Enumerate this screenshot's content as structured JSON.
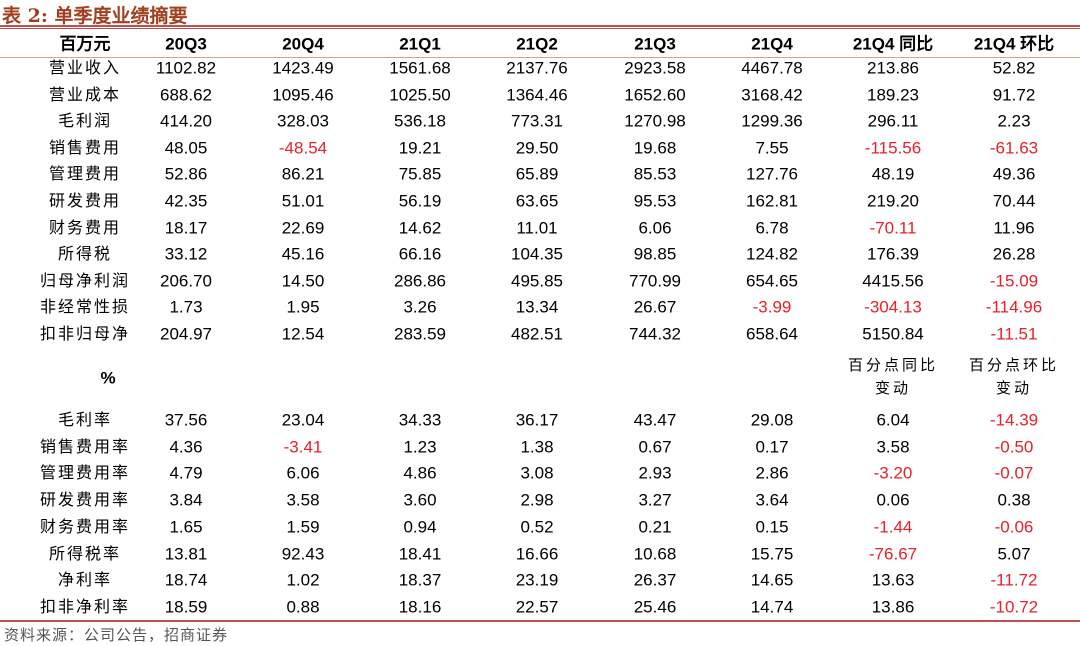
{
  "title": "表 2: 单季度业绩摘要",
  "header": [
    "百万元",
    "20Q3",
    "20Q4",
    "21Q1",
    "21Q2",
    "21Q3",
    "21Q4",
    "21Q4 同比",
    "21Q4 环比"
  ],
  "rows": [
    [
      "营业收入",
      "1102.82",
      "1423.49",
      "1561.68",
      "2137.76",
      "2923.58",
      "4467.78",
      "213.86",
      "52.82"
    ],
    [
      "营业成本",
      "688.62",
      "1095.46",
      "1025.50",
      "1364.46",
      "1652.60",
      "3168.42",
      "189.23",
      "91.72"
    ],
    [
      "毛利润",
      "414.20",
      "328.03",
      "536.18",
      "773.31",
      "1270.98",
      "1299.36",
      "296.11",
      "2.23"
    ],
    [
      "销售费用",
      "48.05",
      "-48.54",
      "19.21",
      "29.50",
      "19.68",
      "7.55",
      "-115.56",
      "-61.63"
    ],
    [
      "管理费用",
      "52.86",
      "86.21",
      "75.85",
      "65.89",
      "85.53",
      "127.76",
      "48.19",
      "49.36"
    ],
    [
      "研发费用",
      "42.35",
      "51.01",
      "56.19",
      "63.65",
      "95.53",
      "162.81",
      "219.20",
      "70.44"
    ],
    [
      "财务费用",
      "18.17",
      "22.69",
      "14.62",
      "11.01",
      "6.06",
      "6.78",
      "-70.11",
      "11.96"
    ],
    [
      "所得税",
      "33.12",
      "45.16",
      "66.16",
      "104.35",
      "98.85",
      "124.82",
      "176.39",
      "26.28"
    ],
    [
      "归母净利润",
      "206.70",
      "14.50",
      "286.86",
      "495.85",
      "770.99",
      "654.65",
      "4415.56",
      "-15.09"
    ],
    [
      "非经常性损",
      "1.73",
      "1.95",
      "3.26",
      "13.34",
      "26.67",
      "-3.99",
      "-304.13",
      "-114.96"
    ],
    [
      "扣非归母净",
      "204.97",
      "12.54",
      "283.59",
      "482.51",
      "744.32",
      "658.64",
      "5150.84",
      "-11.51"
    ]
  ],
  "header2": {
    "unit": "%",
    "yoy": "百分点同比变动",
    "qoq": "百分点环比变动"
  },
  "rows2": [
    [
      "毛利率",
      "37.56",
      "23.04",
      "34.33",
      "36.17",
      "43.47",
      "29.08",
      "6.04",
      "-14.39"
    ],
    [
      "销售费用率",
      "4.36",
      "-3.41",
      "1.23",
      "1.38",
      "0.67",
      "0.17",
      "3.58",
      "-0.50"
    ],
    [
      "管理费用率",
      "4.79",
      "6.06",
      "4.86",
      "3.08",
      "2.93",
      "2.86",
      "-3.20",
      "-0.07"
    ],
    [
      "研发费用率",
      "3.84",
      "3.58",
      "3.60",
      "2.98",
      "3.27",
      "3.64",
      "0.06",
      "0.38"
    ],
    [
      "财务费用率",
      "1.65",
      "1.59",
      "0.94",
      "0.52",
      "0.21",
      "0.15",
      "-1.44",
      "-0.06"
    ],
    [
      "所得税率",
      "13.81",
      "92.43",
      "18.41",
      "16.66",
      "10.68",
      "15.75",
      "-76.67",
      "5.07"
    ],
    [
      "净利率",
      "18.74",
      "1.02",
      "18.37",
      "23.19",
      "26.37",
      "14.65",
      "13.63",
      "-11.72"
    ],
    [
      "扣非净利率",
      "18.59",
      "0.88",
      "18.16",
      "22.57",
      "25.46",
      "14.74",
      "13.86",
      "-10.72"
    ]
  ],
  "source": "资料来源：公司公告，招商证券"
}
